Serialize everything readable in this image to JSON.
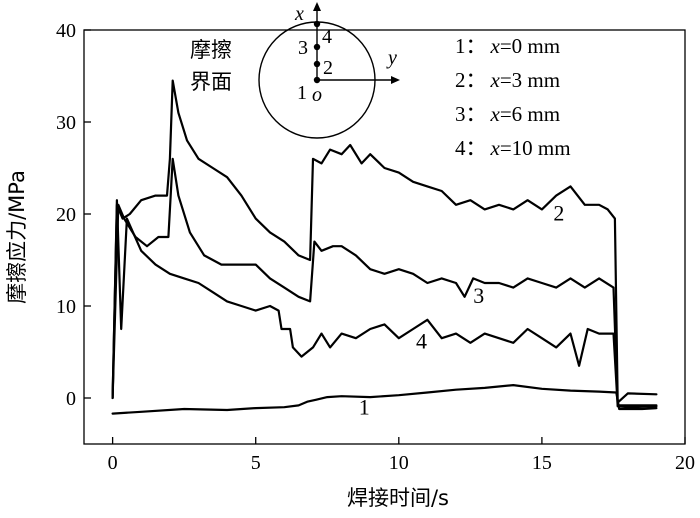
{
  "chart_data": {
    "type": "line",
    "xlabel": "焊接时间/s",
    "ylabel": "摩擦应力/MPa",
    "xlim": [
      -1,
      20
    ],
    "ylim": [
      -5,
      40
    ],
    "xticks": [
      0,
      5,
      10,
      15,
      20
    ],
    "yticks": [
      0,
      10,
      20,
      30,
      40
    ],
    "grid": false,
    "legend_position": "top-right",
    "legend": [
      {
        "key": "1",
        "sep": "：",
        "var": "x",
        "value": "=0 mm"
      },
      {
        "key": "2",
        "sep": "：",
        "var": "x",
        "value": "=3 mm"
      },
      {
        "key": "3",
        "sep": "：",
        "var": "x",
        "value": "=6 mm"
      },
      {
        "key": "4",
        "sep": "：",
        "var": "x",
        "value": "=10 mm"
      }
    ],
    "inset": {
      "title_lines": [
        "摩擦",
        "界面"
      ],
      "x_axis": "x",
      "y_axis": "y",
      "origin": "o",
      "points": [
        "1",
        "2",
        "3",
        "4"
      ]
    },
    "series": [
      {
        "name": "1",
        "label_pos": [
          8.6,
          -1.8
        ],
        "points": [
          [
            0,
            -1.7
          ],
          [
            1,
            -1.5
          ],
          [
            2.5,
            -1.2
          ],
          [
            4,
            -1.3
          ],
          [
            5,
            -1.1
          ],
          [
            6,
            -1.0
          ],
          [
            6.5,
            -0.8
          ],
          [
            6.8,
            -0.4
          ],
          [
            7.1,
            -0.2
          ],
          [
            7.5,
            0.1
          ],
          [
            8,
            0.2
          ],
          [
            9,
            0.1
          ],
          [
            10,
            0.3
          ],
          [
            11,
            0.6
          ],
          [
            12,
            0.9
          ],
          [
            13,
            1.1
          ],
          [
            14,
            1.4
          ],
          [
            15,
            1.0
          ],
          [
            16,
            0.8
          ],
          [
            17,
            0.7
          ],
          [
            17.6,
            0.6
          ],
          [
            17.7,
            -1.2
          ],
          [
            18.5,
            -1.2
          ],
          [
            19,
            -1.1
          ]
        ]
      },
      {
        "name": "2",
        "label_pos": [
          15.4,
          19.3
        ],
        "points": [
          [
            0,
            0
          ],
          [
            0.15,
            21.0
          ],
          [
            0.35,
            19.5
          ],
          [
            0.6,
            20.0
          ],
          [
            1,
            21.5
          ],
          [
            1.5,
            22.0
          ],
          [
            1.9,
            22.0
          ],
          [
            2.0,
            26.0
          ],
          [
            2.1,
            34.5
          ],
          [
            2.3,
            31.0
          ],
          [
            2.6,
            28.0
          ],
          [
            3,
            26.0
          ],
          [
            3.5,
            25.0
          ],
          [
            4,
            24.0
          ],
          [
            4.5,
            22.0
          ],
          [
            5,
            19.5
          ],
          [
            5.5,
            18.0
          ],
          [
            6,
            17.0
          ],
          [
            6.5,
            15.5
          ],
          [
            6.9,
            15.0
          ],
          [
            7.0,
            26.0
          ],
          [
            7.3,
            25.5
          ],
          [
            7.6,
            27.0
          ],
          [
            8,
            26.5
          ],
          [
            8.3,
            27.5
          ],
          [
            8.7,
            25.5
          ],
          [
            9,
            26.5
          ],
          [
            9.5,
            25.0
          ],
          [
            10,
            24.5
          ],
          [
            10.5,
            23.5
          ],
          [
            11,
            23.0
          ],
          [
            11.5,
            22.5
          ],
          [
            12,
            21.0
          ],
          [
            12.5,
            21.5
          ],
          [
            13,
            20.5
          ],
          [
            13.5,
            21.0
          ],
          [
            14,
            20.5
          ],
          [
            14.5,
            21.5
          ],
          [
            15,
            20.5
          ],
          [
            15.5,
            22.0
          ],
          [
            16,
            23.0
          ],
          [
            16.5,
            21.0
          ],
          [
            17,
            21.0
          ],
          [
            17.3,
            20.5
          ],
          [
            17.55,
            19.5
          ],
          [
            17.65,
            -0.5
          ],
          [
            18,
            0.5
          ],
          [
            19,
            0.4
          ]
        ]
      },
      {
        "name": "3",
        "label_pos": [
          12.6,
          10.3
        ],
        "points": [
          [
            0,
            0
          ],
          [
            0.2,
            21.0
          ],
          [
            0.4,
            19.5
          ],
          [
            0.8,
            17.5
          ],
          [
            1.2,
            16.5
          ],
          [
            1.6,
            17.5
          ],
          [
            1.95,
            17.5
          ],
          [
            2.1,
            26.0
          ],
          [
            2.3,
            22.0
          ],
          [
            2.7,
            18.0
          ],
          [
            3.2,
            15.5
          ],
          [
            3.8,
            14.5
          ],
          [
            4.5,
            14.5
          ],
          [
            5,
            14.5
          ],
          [
            5.5,
            13.0
          ],
          [
            6,
            12.0
          ],
          [
            6.5,
            11.0
          ],
          [
            6.9,
            10.5
          ],
          [
            7.05,
            17.0
          ],
          [
            7.3,
            16.0
          ],
          [
            7.7,
            16.5
          ],
          [
            8,
            16.5
          ],
          [
            8.5,
            15.5
          ],
          [
            9,
            14.0
          ],
          [
            9.5,
            13.5
          ],
          [
            10,
            14.0
          ],
          [
            10.5,
            13.5
          ],
          [
            11,
            12.5
          ],
          [
            11.5,
            13.0
          ],
          [
            12,
            12.5
          ],
          [
            12.3,
            11.0
          ],
          [
            12.6,
            13.0
          ],
          [
            13,
            12.5
          ],
          [
            13.5,
            12.5
          ],
          [
            14,
            12.0
          ],
          [
            14.5,
            13.0
          ],
          [
            15,
            12.5
          ],
          [
            15.5,
            12.0
          ],
          [
            16,
            13.0
          ],
          [
            16.5,
            12.0
          ],
          [
            17,
            13.0
          ],
          [
            17.5,
            12.0
          ],
          [
            17.65,
            -0.8
          ],
          [
            18,
            -0.8
          ],
          [
            19,
            -0.8
          ]
        ]
      },
      {
        "name": "4",
        "label_pos": [
          10.6,
          5.4
        ],
        "points": [
          [
            0,
            0
          ],
          [
            0.15,
            21.5
          ],
          [
            0.3,
            7.5
          ],
          [
            0.5,
            19.5
          ],
          [
            1,
            16.0
          ],
          [
            1.5,
            14.5
          ],
          [
            2,
            13.5
          ],
          [
            2.5,
            13.0
          ],
          [
            3,
            12.5
          ],
          [
            3.5,
            11.5
          ],
          [
            4,
            10.5
          ],
          [
            4.5,
            10.0
          ],
          [
            5,
            9.5
          ],
          [
            5.5,
            10.0
          ],
          [
            5.8,
            9.5
          ],
          [
            5.9,
            7.5
          ],
          [
            6.2,
            7.5
          ],
          [
            6.3,
            5.5
          ],
          [
            6.6,
            4.5
          ],
          [
            7,
            5.5
          ],
          [
            7.3,
            7.0
          ],
          [
            7.6,
            5.5
          ],
          [
            8,
            7.0
          ],
          [
            8.5,
            6.5
          ],
          [
            9,
            7.5
          ],
          [
            9.5,
            8.0
          ],
          [
            10,
            6.5
          ],
          [
            10.5,
            7.5
          ],
          [
            11,
            8.5
          ],
          [
            11.5,
            6.5
          ],
          [
            12,
            7.0
          ],
          [
            12.5,
            6.0
          ],
          [
            13,
            7.0
          ],
          [
            13.5,
            6.5
          ],
          [
            14,
            6.0
          ],
          [
            14.5,
            7.5
          ],
          [
            15,
            6.5
          ],
          [
            15.5,
            5.5
          ],
          [
            16,
            7.0
          ],
          [
            16.3,
            3.5
          ],
          [
            16.6,
            7.5
          ],
          [
            17,
            7.0
          ],
          [
            17.5,
            7.0
          ],
          [
            17.65,
            -0.9
          ],
          [
            18,
            -1.0
          ],
          [
            19,
            -0.9
          ]
        ]
      }
    ]
  }
}
